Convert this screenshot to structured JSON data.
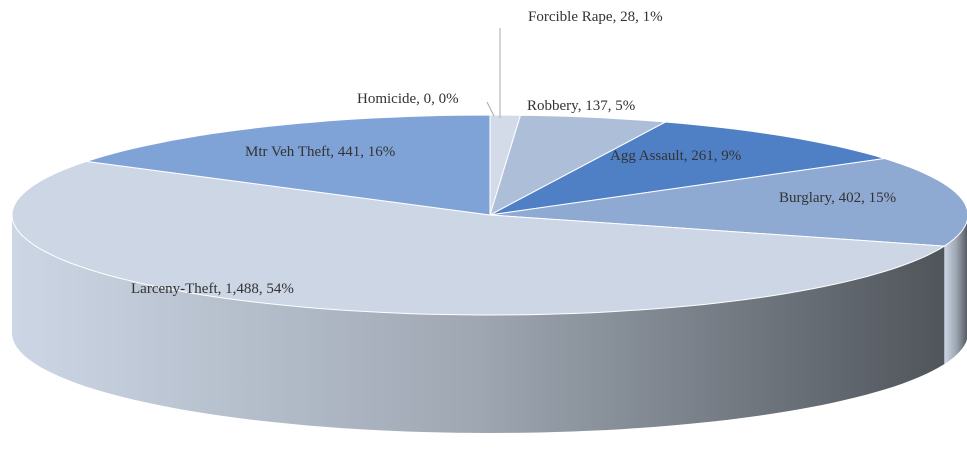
{
  "chart_data": {
    "type": "pie3d",
    "categories": [
      "Homicide",
      "Forcible Rape",
      "Robbery",
      "Agg Assault",
      "Burglary",
      "Larceny-Theft",
      "Mtr Veh Theft"
    ],
    "values": [
      0,
      28,
      137,
      261,
      402,
      1488,
      441
    ],
    "value_labels": [
      "0",
      "28",
      "137",
      "261",
      "402",
      "1,488",
      "441"
    ],
    "percent_labels": [
      "0%",
      "1%",
      "5%",
      "9%",
      "15%",
      "54%",
      "16%"
    ],
    "label_separator": ", ",
    "colors": [
      "#e3e8f0",
      "#d3dbe8",
      "#adbfd8",
      "#4f80c6",
      "#8eaad2",
      "#ccd6e5",
      "#7fa3d7"
    ]
  }
}
